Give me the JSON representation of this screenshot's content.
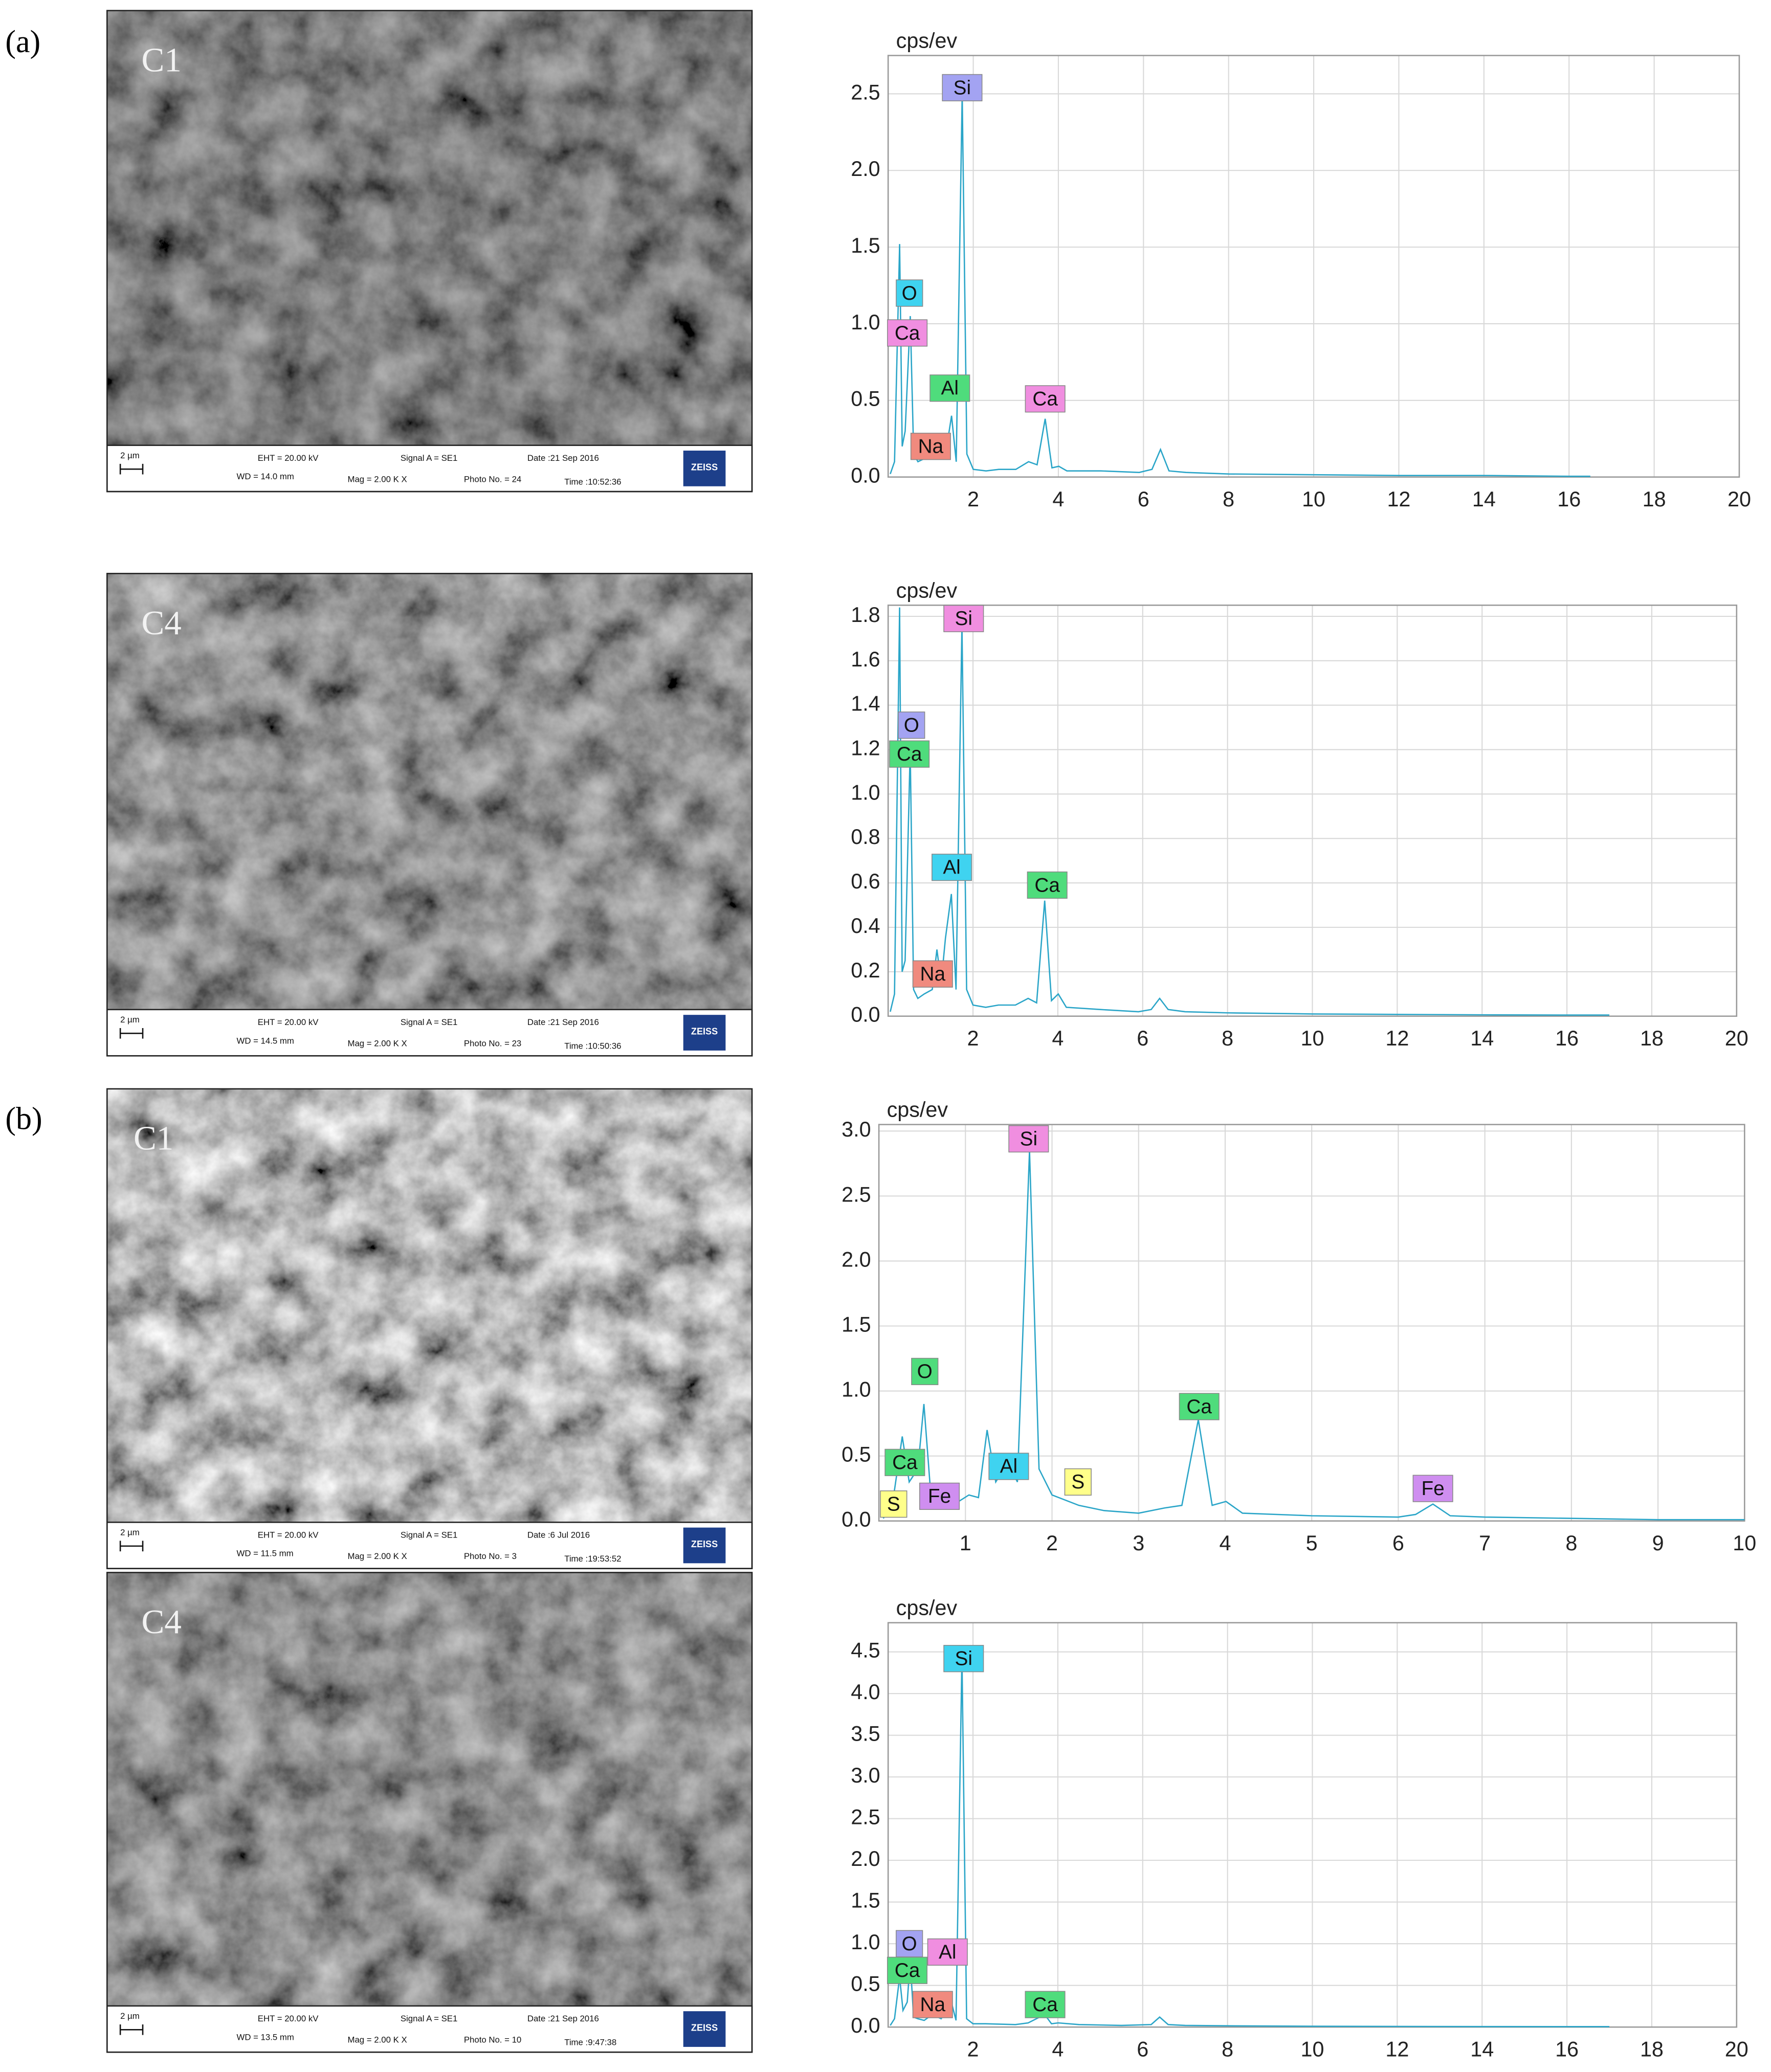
{
  "panel_labels": [
    "(a)",
    "(b)"
  ],
  "sem_images": [
    {
      "sample": "C1",
      "scale": "2 µm",
      "eht": "EHT = 20.00 kV",
      "wd": "WD = 14.0 mm",
      "signal": "Signal A = SE1",
      "mag": "Mag =  2.00 K X",
      "date": "Date :21 Sep 2016",
      "photo": "Photo No. = 24",
      "time": "Time :10:52:36",
      "brand": "ZEISS"
    },
    {
      "sample": "C4",
      "scale": "2 µm",
      "eht": "EHT = 20.00 kV",
      "wd": "WD = 14.5 mm",
      "signal": "Signal A = SE1",
      "mag": "Mag =  2.00 K X",
      "date": "Date :21 Sep 2016",
      "photo": "Photo No. = 23",
      "time": "Time :10:50:36",
      "brand": "ZEISS"
    },
    {
      "sample": "C1",
      "scale": "2 µm",
      "eht": "EHT = 20.00 kV",
      "wd": "WD = 11.5 mm",
      "signal": "Signal A = SE1",
      "mag": "Mag =  2.00 K X",
      "date": "Date :6 Jul 2016",
      "photo": "Photo No. = 3",
      "time": "Time :19:53:52",
      "brand": "ZEISS"
    },
    {
      "sample": "C4",
      "scale": "2 µm",
      "eht": "EHT = 20.00 kV",
      "wd": "WD = 13.5 mm",
      "signal": "Signal A = SE1",
      "mag": "Mag =  2.00 K X",
      "date": "Date :21 Sep 2016",
      "photo": "Photo No. = 10",
      "time": "Time :9:47:38",
      "brand": "ZEISS"
    }
  ],
  "chart_data": [
    {
      "type": "line",
      "y_label": "cps/ev",
      "color": "#2aa5c8",
      "grid": true,
      "xlim": [
        0,
        20
      ],
      "xticks": [
        2,
        4,
        6,
        8,
        10,
        12,
        14,
        16,
        18,
        20
      ],
      "ylim": [
        0,
        2.75
      ],
      "yticks": [
        {
          "value": 0,
          "label": "0.0"
        },
        0.5,
        {
          "value": 1,
          "label": "1.0"
        },
        1.5,
        {
          "value": 2,
          "label": "2.0"
        },
        2.5
      ],
      "x": [
        0.05,
        0.15,
        0.27,
        0.33,
        0.4,
        0.52,
        0.6,
        0.7,
        0.85,
        1.04,
        1.15,
        1.25,
        1.35,
        1.49,
        1.6,
        1.74,
        1.85,
        2.0,
        2.3,
        2.6,
        3.0,
        3.3,
        3.5,
        3.69,
        3.85,
        4.01,
        4.2,
        5,
        5.9,
        6.2,
        6.4,
        6.6,
        7,
        8,
        10,
        12,
        14,
        16,
        16.5
      ],
      "values": [
        0.02,
        0.1,
        1.52,
        0.2,
        0.3,
        1.05,
        0.15,
        0.1,
        0.12,
        0.15,
        0.2,
        0.12,
        0.15,
        0.4,
        0.1,
        2.5,
        0.15,
        0.05,
        0.04,
        0.05,
        0.05,
        0.1,
        0.08,
        0.38,
        0.06,
        0.07,
        0.04,
        0.04,
        0.03,
        0.05,
        0.18,
        0.04,
        0.03,
        0.02,
        0.015,
        0.01,
        0.01,
        0.005,
        0.005
      ],
      "annotations": [
        {
          "text": "Si",
          "color": "#a3a3f2"
        },
        {
          "text": "O",
          "color": "#3fd3f0"
        },
        {
          "text": "Ca",
          "color": "#f08ee0"
        },
        {
          "text": "Al",
          "color": "#4fdc7c"
        },
        {
          "text": "Ca",
          "color": "#f08ee0"
        },
        {
          "text": "Na",
          "color": "#f08a7e"
        }
      ]
    },
    {
      "type": "line",
      "y_label": "cps/ev",
      "color": "#2aa5c8",
      "grid": true,
      "xlim": [
        0,
        20
      ],
      "xticks": [
        2,
        4,
        6,
        8,
        10,
        12,
        14,
        16,
        18,
        20
      ],
      "ylim": [
        0,
        1.85
      ],
      "yticks": [
        {
          "value": 0,
          "label": "0.0"
        },
        0.2,
        0.4,
        0.6,
        0.8,
        {
          "value": 1,
          "label": "1.0"
        },
        1.2,
        1.4,
        1.6,
        1.8
      ],
      "x": [
        0.05,
        0.15,
        0.27,
        0.33,
        0.4,
        0.52,
        0.6,
        0.7,
        0.85,
        1.04,
        1.15,
        1.25,
        1.35,
        1.49,
        1.6,
        1.74,
        1.85,
        2.0,
        2.3,
        2.6,
        3.0,
        3.3,
        3.5,
        3.69,
        3.85,
        4.01,
        4.2,
        5,
        5.9,
        6.2,
        6.4,
        6.6,
        7,
        8,
        10,
        12,
        14,
        16,
        17
      ],
      "values": [
        0.02,
        0.1,
        1.84,
        0.2,
        0.25,
        1.2,
        0.12,
        0.08,
        0.1,
        0.12,
        0.3,
        0.15,
        0.35,
        0.55,
        0.12,
        1.76,
        0.12,
        0.05,
        0.04,
        0.05,
        0.05,
        0.08,
        0.06,
        0.52,
        0.07,
        0.1,
        0.04,
        0.03,
        0.02,
        0.03,
        0.08,
        0.03,
        0.02,
        0.015,
        0.01,
        0.008,
        0.006,
        0.005,
        0.005
      ],
      "annotations": [
        {
          "text": "Si",
          "color": "#f08ee0"
        },
        {
          "text": "O",
          "color": "#a3a3f2"
        },
        {
          "text": "Ca",
          "color": "#4fdc7c"
        },
        {
          "text": "Al",
          "color": "#3fd3f0"
        },
        {
          "text": "Ca",
          "color": "#4fdc7c"
        },
        {
          "text": "Na",
          "color": "#f08a7e"
        }
      ]
    },
    {
      "type": "line",
      "y_label": "cps/ev",
      "color": "#2aa5c8",
      "grid": true,
      "xlim": [
        0,
        10
      ],
      "xticks": [
        1,
        2,
        3,
        4,
        5,
        6,
        7,
        8,
        9,
        10
      ],
      "ylim": [
        0,
        3.05
      ],
      "yticks": [
        {
          "value": 0,
          "label": "0.0"
        },
        0.5,
        {
          "value": 1,
          "label": "1.0"
        },
        1.5,
        {
          "value": 2,
          "label": "2.0"
        },
        2.5,
        {
          "value": 3,
          "label": "3.0"
        }
      ],
      "x": [
        0.05,
        0.15,
        0.27,
        0.35,
        0.45,
        0.52,
        0.6,
        0.7,
        0.85,
        1.04,
        1.15,
        1.25,
        1.35,
        1.49,
        1.6,
        1.74,
        1.85,
        2.0,
        2.31,
        2.6,
        3.0,
        3.3,
        3.5,
        3.69,
        3.85,
        4.01,
        4.2,
        5,
        6,
        6.2,
        6.4,
        6.6,
        7,
        8,
        9,
        10
      ],
      "values": [
        0.02,
        0.1,
        0.65,
        0.3,
        0.4,
        0.9,
        0.2,
        0.15,
        0.12,
        0.2,
        0.18,
        0.7,
        0.3,
        0.45,
        0.3,
        2.85,
        0.4,
        0.2,
        0.12,
        0.08,
        0.06,
        0.1,
        0.12,
        0.78,
        0.12,
        0.15,
        0.06,
        0.04,
        0.03,
        0.05,
        0.13,
        0.04,
        0.03,
        0.02,
        0.01,
        0.01
      ],
      "annotations": [
        {
          "text": "Si",
          "color": "#f08ee0"
        },
        {
          "text": "O",
          "color": "#4fdc7c"
        },
        {
          "text": "Ca",
          "color": "#4fdc7c"
        },
        {
          "text": "Al",
          "color": "#3fd3f0"
        },
        {
          "text": "S",
          "color": "#ffff8a"
        },
        {
          "text": "Fe",
          "color": "#cf8ef0"
        },
        {
          "text": "S",
          "color": "#ffff8a"
        },
        {
          "text": "Ca",
          "color": "#4fdc7c"
        },
        {
          "text": "Fe",
          "color": "#cf8ef0"
        }
      ]
    },
    {
      "type": "line",
      "y_label": "cps/ev",
      "color": "#2aa5c8",
      "grid": true,
      "xlim": [
        0,
        20
      ],
      "xticks": [
        2,
        4,
        6,
        8,
        10,
        12,
        14,
        16,
        18,
        20
      ],
      "ylim": [
        0,
        4.85
      ],
      "yticks": [
        {
          "value": 0,
          "label": "0.0"
        },
        0.5,
        {
          "value": 1,
          "label": "1.0"
        },
        1.5,
        {
          "value": 2,
          "label": "2.0"
        },
        2.5,
        {
          "value": 3,
          "label": "3.0"
        },
        3.5,
        {
          "value": 4,
          "label": "4.0"
        },
        4.5
      ],
      "x": [
        0.05,
        0.15,
        0.27,
        0.35,
        0.45,
        0.52,
        0.6,
        0.7,
        0.85,
        1.04,
        1.25,
        1.49,
        1.6,
        1.74,
        1.85,
        2.0,
        2.3,
        3.0,
        3.3,
        3.69,
        3.85,
        4.01,
        4.5,
        5.5,
        6.2,
        6.4,
        6.6,
        7,
        8,
        10,
        12,
        14,
        16,
        17
      ],
      "values": [
        0.02,
        0.1,
        0.6,
        0.2,
        0.3,
        0.8,
        0.12,
        0.1,
        0.08,
        0.15,
        0.1,
        0.3,
        0.08,
        4.45,
        0.1,
        0.04,
        0.04,
        0.03,
        0.05,
        0.15,
        0.04,
        0.05,
        0.03,
        0.02,
        0.03,
        0.12,
        0.03,
        0.02,
        0.015,
        0.01,
        0.008,
        0.006,
        0.005,
        0.005
      ],
      "annotations": [
        {
          "text": "Si",
          "color": "#3fd3f0"
        },
        {
          "text": "O",
          "color": "#a3a3f2"
        },
        {
          "text": "Ca",
          "color": "#4fdc7c"
        },
        {
          "text": "Al",
          "color": "#f08ee0"
        },
        {
          "text": "Na",
          "color": "#f08a7e"
        },
        {
          "text": "Ca",
          "color": "#4fdc7c"
        }
      ]
    }
  ]
}
